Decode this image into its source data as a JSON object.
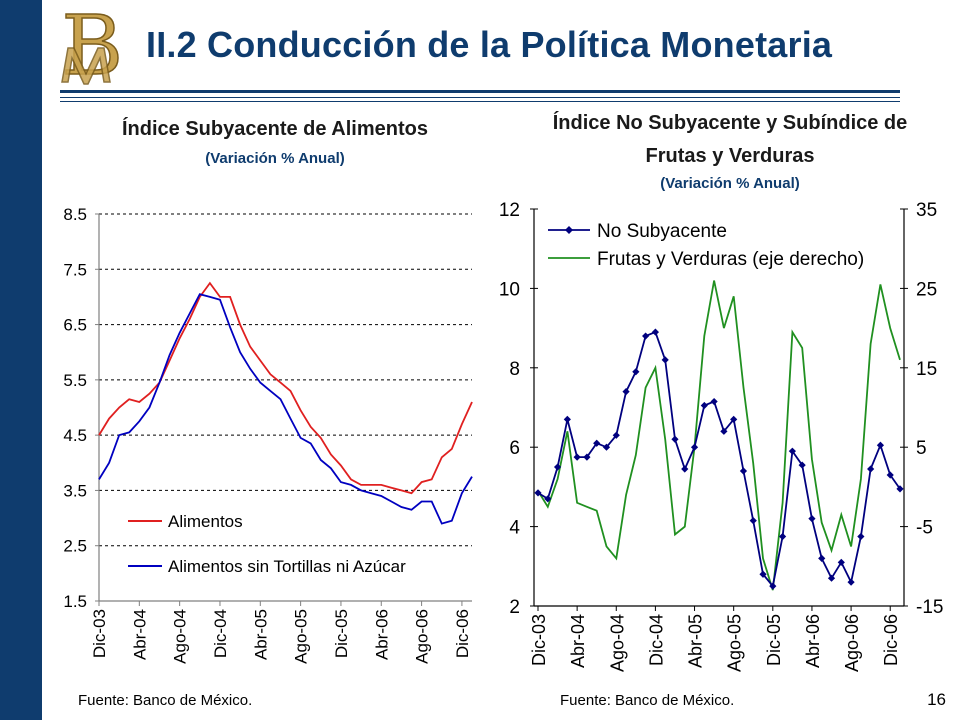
{
  "page": {
    "title": "II.2 Conducción de la Política Monetaria",
    "page_number": "16",
    "brand_color": "#0f3c6e",
    "logo": "Banco de México BM monogram"
  },
  "charts": [
    {
      "title": "Índice Subyacente de Alimentos",
      "subtitle": "(Variación % Anual)",
      "source": "Fuente: Banco de México."
    },
    {
      "title_line1": "Índice No Subyacente y Subíndice de",
      "title_line2": "Frutas y Verduras",
      "subtitle": "(Variación % Anual)",
      "source": "Fuente: Banco de México."
    }
  ],
  "chart_data": [
    {
      "type": "line",
      "title": "Índice Subyacente de Alimentos",
      "subtitle": "(Variación % Anual)",
      "x_tick_labels": [
        "Dic-03",
        "Abr-04",
        "Ago-04",
        "Dic-04",
        "Abr-05",
        "Ago-05",
        "Dic-05",
        "Abr-06",
        "Ago-06",
        "Dic-06"
      ],
      "ylim": [
        1.5,
        8.5
      ],
      "yticks": [
        1.5,
        2.5,
        3.5,
        4.5,
        5.5,
        6.5,
        7.5,
        8.5
      ],
      "grid": "horizontal dashed",
      "legend_position": "bottom-right",
      "series": [
        {
          "name": "Alimentos",
          "color": "#e02020",
          "values": [
            4.5,
            4.8,
            5.0,
            5.15,
            5.1,
            5.25,
            5.45,
            5.85,
            6.25,
            6.6,
            7.0,
            7.25,
            7.0,
            7.0,
            6.5,
            6.1,
            5.85,
            5.6,
            5.45,
            5.3,
            4.95,
            4.65,
            4.45,
            4.15,
            3.95,
            3.7,
            3.6,
            3.6,
            3.6,
            3.55,
            3.5,
            3.45,
            3.65,
            3.7,
            4.1,
            4.25,
            4.7,
            5.1
          ]
        },
        {
          "name": "Alimentos sin Tortillas ni Azúcar",
          "color": "#0000c0",
          "values": [
            3.7,
            4.0,
            4.5,
            4.55,
            4.75,
            5.0,
            5.45,
            5.95,
            6.35,
            6.7,
            7.05,
            7.0,
            6.95,
            6.45,
            6.0,
            5.7,
            5.45,
            5.3,
            5.15,
            4.8,
            4.45,
            4.35,
            4.05,
            3.9,
            3.65,
            3.6,
            3.5,
            3.45,
            3.4,
            3.3,
            3.2,
            3.15,
            3.3,
            3.3,
            2.9,
            2.95,
            3.45,
            3.75
          ]
        }
      ]
    },
    {
      "type": "line",
      "title": "Índice No Subyacente y Subíndice de Frutas y Verduras",
      "subtitle": "(Variación % Anual)",
      "x_tick_labels": [
        "Dic-03",
        "Abr-04",
        "Ago-04",
        "Dic-04",
        "Abr-05",
        "Ago-05",
        "Dic-05",
        "Abr-06",
        "Ago-06",
        "Dic-06"
      ],
      "ylim_left": [
        2,
        12
      ],
      "yticks_left": [
        2,
        4,
        6,
        8,
        10,
        12
      ],
      "ylim_right": [
        -15,
        35
      ],
      "yticks_right": [
        -15,
        -5,
        5,
        15,
        25,
        35
      ],
      "grid": "none",
      "legend_position": "top-left",
      "series": [
        {
          "name": "No Subyacente",
          "axis": "left",
          "color": "#00007f",
          "marker": "diamond",
          "values": [
            4.85,
            4.7,
            5.5,
            6.7,
            5.75,
            5.75,
            6.1,
            6.0,
            6.3,
            7.4,
            7.9,
            8.8,
            8.9,
            8.2,
            6.2,
            5.45,
            6.0,
            7.05,
            7.15,
            6.4,
            6.7,
            5.4,
            4.15,
            2.8,
            2.5,
            3.75,
            5.9,
            5.55,
            4.2,
            3.2,
            2.7,
            3.1,
            2.6,
            3.75,
            5.45,
            6.05,
            5.3,
            4.95
          ]
        },
        {
          "name": "Frutas y Verduras (eje derecho)",
          "axis": "right",
          "color": "#209020",
          "values": [
            -0.5,
            -2.5,
            1.0,
            7.0,
            -2.0,
            -2.5,
            -3.0,
            -7.5,
            -9.0,
            -1.0,
            4.0,
            12.5,
            15.0,
            6.0,
            -6.0,
            -5.0,
            5.0,
            19.0,
            26.0,
            20.0,
            24.0,
            12.5,
            3.0,
            -9.0,
            -13.0,
            -2.0,
            19.5,
            17.5,
            3.5,
            -4.5,
            -8.0,
            -3.5,
            -7.5,
            1.0,
            18.0,
            25.5,
            20.0,
            16.0
          ]
        }
      ]
    }
  ]
}
